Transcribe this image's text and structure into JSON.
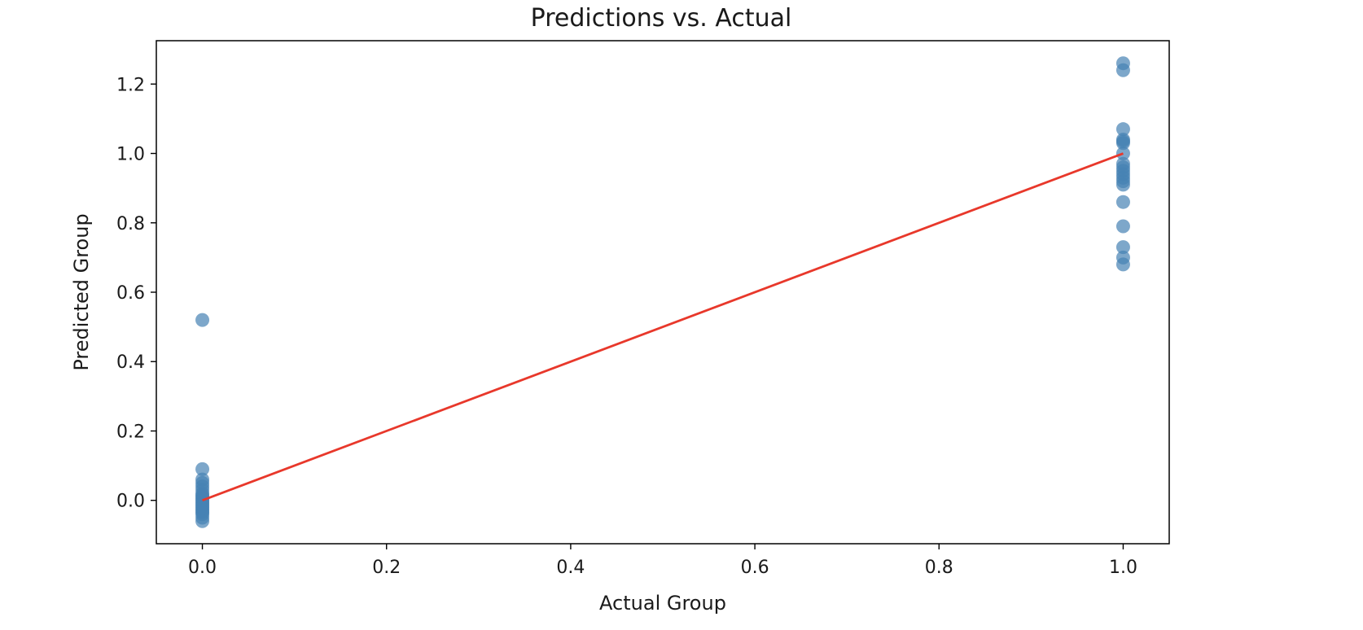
{
  "chart_data": {
    "type": "scatter",
    "title": "Predictions vs. Actual",
    "xlabel": "Actual Group",
    "ylabel": "Predicted Group",
    "xlim": [
      -0.05,
      1.05
    ],
    "ylim": [
      -0.125,
      1.325
    ],
    "grid": false,
    "xticks": [
      "0.0",
      "0.2",
      "0.4",
      "0.6",
      "0.8",
      "1.0"
    ],
    "yticks": [
      "0.0",
      "0.2",
      "0.4",
      "0.6",
      "0.8",
      "1.0",
      "1.2"
    ],
    "xtick_values": [
      0.0,
      0.2,
      0.4,
      0.6,
      0.8,
      1.0
    ],
    "ytick_values": [
      0.0,
      0.2,
      0.4,
      0.6,
      0.8,
      1.0,
      1.2
    ],
    "point_color": "#4682b4",
    "line_color": "#e8382b",
    "series": [
      {
        "kind": "scatter",
        "points": [
          [
            0,
            0.52
          ],
          [
            0,
            0.09
          ],
          [
            0,
            0.06
          ],
          [
            0,
            0.05
          ],
          [
            0,
            0.04
          ],
          [
            0,
            0.03
          ],
          [
            0,
            0.02
          ],
          [
            0,
            0.015
          ],
          [
            0,
            0.01
          ],
          [
            0,
            0.005
          ],
          [
            0,
            0.0
          ],
          [
            0,
            -0.005
          ],
          [
            0,
            -0.01
          ],
          [
            0,
            -0.015
          ],
          [
            0,
            -0.02
          ],
          [
            0,
            -0.025
          ],
          [
            0,
            -0.03
          ],
          [
            0,
            -0.035
          ],
          [
            0,
            -0.04
          ],
          [
            0,
            -0.05
          ],
          [
            0,
            -0.06
          ],
          [
            1,
            1.26
          ],
          [
            1,
            1.24
          ],
          [
            1,
            1.07
          ],
          [
            1,
            1.04
          ],
          [
            1,
            1.035
          ],
          [
            1,
            1.03
          ],
          [
            1,
            1.0
          ],
          [
            1,
            0.97
          ],
          [
            1,
            0.96
          ],
          [
            1,
            0.95
          ],
          [
            1,
            0.94
          ],
          [
            1,
            0.93
          ],
          [
            1,
            0.92
          ],
          [
            1,
            0.91
          ],
          [
            1,
            0.86
          ],
          [
            1,
            0.79
          ],
          [
            1,
            0.73
          ],
          [
            1,
            0.7
          ],
          [
            1,
            0.68
          ]
        ]
      },
      {
        "kind": "line",
        "points": [
          [
            0,
            0
          ],
          [
            1,
            1
          ]
        ]
      }
    ]
  }
}
